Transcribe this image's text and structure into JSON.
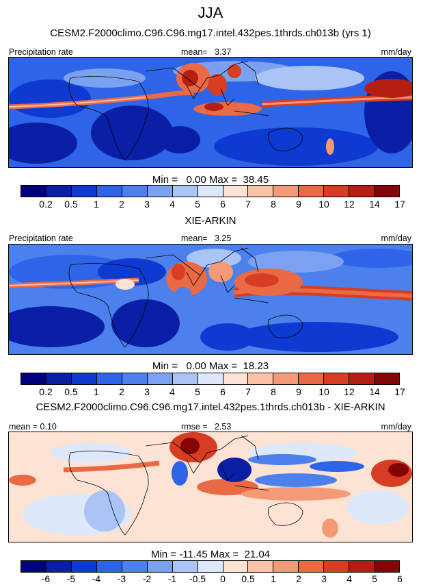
{
  "season": "JJA",
  "panels": [
    {
      "title": "CESM2.F2000climo.C96.C96.mg17.intel.432pes.1thrds.ch013b (yrs 1)",
      "left_label": "Precipitation rate",
      "stat_label": "mean=",
      "stat_value": "3.37",
      "units": "mm/day",
      "min_label": "Min =",
      "min_value": "0.00",
      "max_label": "Max =",
      "max_value": "38.45",
      "colorbar": [
        "#00007f",
        "#0a1fa6",
        "#0d3ad0",
        "#2e64e8",
        "#4c80ec",
        "#7ba2f0",
        "#a9c4f5",
        "#dde8fa",
        "#fce3d4",
        "#fbc2a6",
        "#f59a76",
        "#ea6a46",
        "#d63d22",
        "#b51e12",
        "#840505"
      ],
      "ticks": [
        "0.2",
        "0.5",
        "1",
        "2",
        "3",
        "4",
        "5",
        "6",
        "7",
        "8",
        "9",
        "10",
        "12",
        "14",
        "17"
      ]
    },
    {
      "title": "XIE-ARKIN",
      "left_label": "Precipitation rate",
      "stat_label": "mean=",
      "stat_value": "3.25",
      "units": "mm/day",
      "min_label": "Min =",
      "min_value": "0.00",
      "max_label": "Max =",
      "max_value": "18.23",
      "colorbar": [
        "#00007f",
        "#0a1fa6",
        "#0d3ad0",
        "#2e64e8",
        "#4c80ec",
        "#7ba2f0",
        "#a9c4f5",
        "#dde8fa",
        "#fce3d4",
        "#fbc2a6",
        "#f59a76",
        "#ea6a46",
        "#d63d22",
        "#b51e12",
        "#840505"
      ],
      "ticks": [
        "0.2",
        "0.5",
        "1",
        "2",
        "3",
        "4",
        "5",
        "6",
        "7",
        "8",
        "9",
        "10",
        "12",
        "14",
        "17"
      ]
    },
    {
      "title": "CESM2.F2000climo.C96.C96.mg17.intel.432pes.1thrds.ch013b - XIE-ARKIN",
      "left_label": "mean =  0.10",
      "stat_label": "rmse =",
      "stat_value": "2.53",
      "units": "mm/day",
      "min_label": "Min =",
      "min_value": "-11.45",
      "max_label": "Max =",
      "max_value": "21.04",
      "colorbar": [
        "#00007f",
        "#0a1fa6",
        "#0d3ad0",
        "#2e64e8",
        "#4c80ec",
        "#7ba2f0",
        "#a9c4f5",
        "#dde8fa",
        "#fce3d4",
        "#fbc2a6",
        "#f59a76",
        "#ea6a46",
        "#d63d22",
        "#b51e12",
        "#840505"
      ],
      "ticks": [
        "-6",
        "-5",
        "-4",
        "-3",
        "-2",
        "-1",
        "-0.5",
        "0",
        "0.5",
        "1",
        "2",
        "3",
        "4",
        "5",
        "6"
      ]
    }
  ],
  "chart_data": [
    {
      "type": "heatmap",
      "title": "CESM2.F2000climo.C96.C96.mg17.intel.432pes.1thrds.ch013b (yrs 1)",
      "variable": "Precipitation rate",
      "units": "mm/day",
      "mean": 3.37,
      "min": 0.0,
      "max": 38.45,
      "levels": [
        0.2,
        0.5,
        1,
        2,
        3,
        4,
        5,
        6,
        7,
        8,
        9,
        10,
        12,
        14,
        17
      ]
    },
    {
      "type": "heatmap",
      "title": "XIE-ARKIN",
      "variable": "Precipitation rate",
      "units": "mm/day",
      "mean": 3.25,
      "min": 0.0,
      "max": 18.23,
      "levels": [
        0.2,
        0.5,
        1,
        2,
        3,
        4,
        5,
        6,
        7,
        8,
        9,
        10,
        12,
        14,
        17
      ]
    },
    {
      "type": "heatmap",
      "title": "CESM2.F2000climo.C96.C96.mg17.intel.432pes.1thrds.ch013b - XIE-ARKIN",
      "units": "mm/day",
      "mean": 0.1,
      "rmse": 2.53,
      "min": -11.45,
      "max": 21.04,
      "levels": [
        -6,
        -5,
        -4,
        -3,
        -2,
        -1,
        -0.5,
        0,
        0.5,
        1,
        2,
        3,
        4,
        5,
        6
      ]
    }
  ]
}
